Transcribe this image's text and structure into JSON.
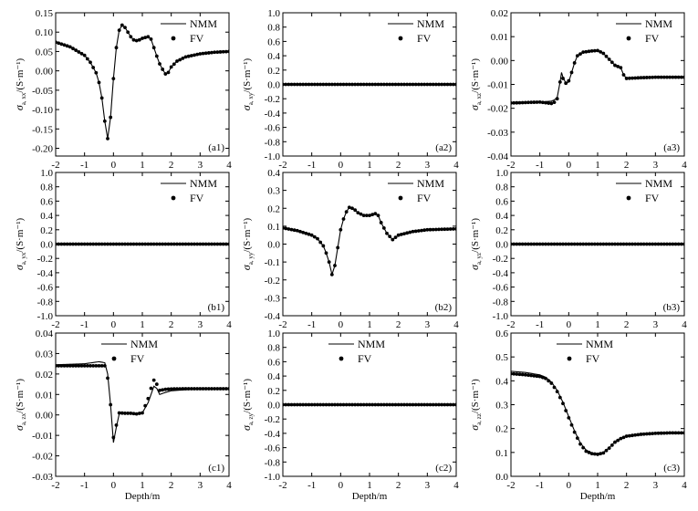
{
  "figure": {
    "x_axis_label": "Depth/m",
    "legend_names": [
      "NMM",
      "FV"
    ]
  },
  "chart_data": [
    {
      "id": "a1",
      "panel_label": "(a1)",
      "type": "line",
      "ylabel_main": "σ",
      "ylabel_sub": "a, xx",
      "ylabel_unit": "/(S·m⁻¹)",
      "xlim": [
        -2,
        4
      ],
      "ylim": [
        -0.22,
        0.15
      ],
      "xticks": [
        "-2",
        "-1",
        "0",
        "1",
        "2",
        "3",
        "4"
      ],
      "yticks": [
        "0.15",
        "0.10",
        "0.05",
        "0.00",
        "-0.05",
        "-0.10",
        "-0.15",
        "-0.20"
      ],
      "legend": "top-right",
      "grid": false,
      "series": [
        {
          "name": "NMM",
          "style": "line",
          "x": [
            -2,
            -1.5,
            -1,
            -0.8,
            -0.6,
            -0.5,
            -0.4,
            -0.3,
            -0.2,
            -0.1,
            0,
            0.1,
            0.2,
            0.3,
            0.4,
            0.5,
            0.6,
            0.7,
            0.8,
            0.9,
            1.0,
            1.1,
            1.2,
            1.3,
            1.4,
            1.5,
            1.6,
            1.7,
            1.8,
            1.9,
            2.0,
            2.2,
            2.5,
            3.0,
            3.5,
            4.0
          ],
          "y": [
            0.074,
            0.062,
            0.04,
            0.022,
            -0.005,
            -0.03,
            -0.07,
            -0.13,
            -0.175,
            -0.12,
            -0.02,
            0.06,
            0.105,
            0.118,
            0.112,
            0.1,
            0.088,
            0.08,
            0.078,
            0.08,
            0.084,
            0.086,
            0.088,
            0.082,
            0.06,
            0.038,
            0.018,
            0.004,
            -0.008,
            -0.004,
            0.01,
            0.025,
            0.036,
            0.044,
            0.048,
            0.05
          ]
        },
        {
          "name": "FV",
          "style": "markers",
          "x": [
            -2,
            -1.5,
            -1,
            -0.8,
            -0.6,
            -0.5,
            -0.4,
            -0.3,
            -0.2,
            -0.1,
            0,
            0.1,
            0.2,
            0.3,
            0.4,
            0.5,
            0.6,
            0.7,
            0.8,
            0.9,
            1.0,
            1.1,
            1.2,
            1.3,
            1.4,
            1.5,
            1.6,
            1.7,
            1.8,
            1.9,
            2.0,
            2.2,
            2.5,
            3.0,
            3.5,
            4.0
          ],
          "y": [
            0.074,
            0.062,
            0.04,
            0.022,
            -0.005,
            -0.03,
            -0.07,
            -0.13,
            -0.175,
            -0.12,
            -0.02,
            0.06,
            0.105,
            0.118,
            0.112,
            0.1,
            0.088,
            0.08,
            0.078,
            0.08,
            0.084,
            0.086,
            0.088,
            0.082,
            0.06,
            0.038,
            0.018,
            0.004,
            -0.008,
            -0.004,
            0.01,
            0.025,
            0.036,
            0.044,
            0.048,
            0.05
          ]
        }
      ]
    },
    {
      "id": "a2",
      "panel_label": "(a2)",
      "type": "line",
      "ylabel_main": "σ",
      "ylabel_sub": "a, xy",
      "ylabel_unit": "/(S·m⁻¹)",
      "xlim": [
        -2,
        4
      ],
      "ylim": [
        -1,
        1
      ],
      "xticks": [
        "-2",
        "-1",
        "0",
        "1",
        "2",
        "3",
        "4"
      ],
      "yticks": [
        "1.0",
        "0.8",
        "0.6",
        "0.4",
        "0.2",
        "0.0",
        "-0.2",
        "-0.4",
        "-0.6",
        "-0.8",
        "-1.0"
      ],
      "legend": "top-right",
      "grid": false,
      "series": [
        {
          "name": "NMM",
          "style": "line",
          "x": [
            -2,
            4
          ],
          "y": [
            0,
            0
          ]
        },
        {
          "name": "FV",
          "style": "markers",
          "x": [
            -2,
            4
          ],
          "y": [
            0,
            0
          ]
        }
      ]
    },
    {
      "id": "a3",
      "panel_label": "(a3)",
      "type": "line",
      "ylabel_main": "σ",
      "ylabel_sub": "a, xz",
      "ylabel_unit": "/(S·m⁻¹)",
      "xlim": [
        -2,
        4
      ],
      "ylim": [
        -0.04,
        0.02
      ],
      "xticks": [
        "-2",
        "-1",
        "0",
        "1",
        "2",
        "3",
        "4"
      ],
      "yticks": [
        "0.02",
        "0.01",
        "0.00",
        "-0.01",
        "-0.02",
        "-0.03",
        "-0.04"
      ],
      "legend": "top-right",
      "grid": false,
      "series": [
        {
          "name": "NMM",
          "style": "line",
          "x": [
            -2,
            -1,
            -0.6,
            -0.5,
            -0.4,
            -0.3,
            -0.25,
            -0.2,
            -0.1,
            0,
            0.1,
            0.2,
            0.3,
            0.5,
            0.8,
            1.0,
            1.2,
            1.4,
            1.6,
            1.8,
            1.9,
            2.0,
            2.5,
            3.0,
            4.0
          ],
          "y": [
            -0.0178,
            -0.0174,
            -0.017,
            -0.0165,
            -0.0155,
            -0.009,
            -0.005,
            -0.007,
            -0.0095,
            -0.009,
            -0.005,
            -0.001,
            0.002,
            0.0035,
            0.004,
            0.0042,
            0.003,
            0.0005,
            -0.002,
            -0.003,
            -0.006,
            -0.0075,
            -0.0072,
            -0.007,
            -0.007
          ]
        },
        {
          "name": "FV",
          "style": "markers",
          "x": [
            -2,
            -1,
            -0.6,
            -0.5,
            -0.4,
            -0.3,
            -0.25,
            -0.2,
            -0.1,
            0,
            0.1,
            0.2,
            0.3,
            0.5,
            0.8,
            1.0,
            1.2,
            1.4,
            1.6,
            1.8,
            1.9,
            2.0,
            2.5,
            3.0,
            4.0
          ],
          "y": [
            -0.0178,
            -0.0174,
            -0.018,
            -0.0175,
            -0.016,
            -0.009,
            -0.004,
            -0.0075,
            -0.0095,
            -0.0085,
            -0.005,
            -0.001,
            0.002,
            0.0035,
            0.004,
            0.0042,
            0.003,
            0.0005,
            -0.002,
            -0.003,
            -0.006,
            -0.0075,
            -0.0072,
            -0.007,
            -0.007
          ]
        }
      ]
    },
    {
      "id": "b1",
      "panel_label": "(b1)",
      "type": "line",
      "ylabel_main": "σ",
      "ylabel_sub": "a, yx",
      "ylabel_unit": "/(S·m⁻¹)",
      "xlim": [
        -2,
        4
      ],
      "ylim": [
        -1,
        1
      ],
      "xticks": [
        "-2",
        "-1",
        "0",
        "1",
        "2",
        "3",
        "4"
      ],
      "yticks": [
        "1.0",
        "0.8",
        "0.6",
        "0.4",
        "0.2",
        "0.0",
        "-0.2",
        "-0.4",
        "-0.6",
        "-0.8",
        "-1.0"
      ],
      "legend": "top-right",
      "grid": false,
      "series": [
        {
          "name": "NMM",
          "style": "line",
          "x": [
            -2,
            4
          ],
          "y": [
            0,
            0
          ]
        },
        {
          "name": "FV",
          "style": "markers",
          "x": [
            -2,
            4
          ],
          "y": [
            0,
            0
          ]
        }
      ]
    },
    {
      "id": "b2",
      "panel_label": "(b2)",
      "type": "line",
      "ylabel_main": "σ",
      "ylabel_sub": "a, yy",
      "ylabel_unit": "/(S·m⁻¹)",
      "xlim": [
        -2,
        4
      ],
      "ylim": [
        -0.4,
        0.4
      ],
      "xticks": [
        "-2",
        "-1",
        "0",
        "1",
        "2",
        "3",
        "4"
      ],
      "yticks": [
        "0.4",
        "0.3",
        "0.2",
        "0.1",
        "0.0",
        "-0.1",
        "-0.2",
        "-0.3",
        "-0.4"
      ],
      "legend": "top-right",
      "grid": false,
      "series": [
        {
          "name": "NMM",
          "style": "line",
          "x": [
            -2,
            -1.5,
            -1,
            -0.8,
            -0.6,
            -0.5,
            -0.4,
            -0.3,
            -0.2,
            -0.1,
            0,
            0.1,
            0.2,
            0.3,
            0.4,
            0.5,
            0.6,
            0.8,
            1.0,
            1.2,
            1.3,
            1.4,
            1.6,
            1.8,
            2.0,
            2.5,
            3.0,
            4.0
          ],
          "y": [
            0.09,
            0.075,
            0.05,
            0.03,
            -0.01,
            -0.05,
            -0.1,
            -0.17,
            -0.12,
            -0.02,
            0.08,
            0.14,
            0.18,
            0.205,
            0.2,
            0.19,
            0.175,
            0.16,
            0.16,
            0.17,
            0.16,
            0.12,
            0.06,
            0.025,
            0.05,
            0.07,
            0.08,
            0.085
          ]
        },
        {
          "name": "FV",
          "style": "markers",
          "x": [
            -2,
            -1.5,
            -1,
            -0.8,
            -0.6,
            -0.5,
            -0.4,
            -0.3,
            -0.2,
            -0.1,
            0,
            0.1,
            0.2,
            0.3,
            0.4,
            0.5,
            0.6,
            0.8,
            1.0,
            1.2,
            1.3,
            1.4,
            1.6,
            1.8,
            2.0,
            2.5,
            3.0,
            4.0
          ],
          "y": [
            0.09,
            0.075,
            0.05,
            0.03,
            -0.01,
            -0.05,
            -0.1,
            -0.17,
            -0.12,
            -0.02,
            0.08,
            0.14,
            0.18,
            0.205,
            0.2,
            0.19,
            0.175,
            0.16,
            0.16,
            0.17,
            0.16,
            0.12,
            0.06,
            0.025,
            0.05,
            0.07,
            0.08,
            0.085
          ]
        }
      ]
    },
    {
      "id": "b3",
      "panel_label": "(b3)",
      "type": "line",
      "ylabel_main": "σ",
      "ylabel_sub": "a, yz",
      "ylabel_unit": "/(S·m⁻¹)",
      "xlim": [
        -2,
        4
      ],
      "ylim": [
        -1,
        1
      ],
      "xticks": [
        "-2",
        "-1",
        "0",
        "1",
        "2",
        "3",
        "4"
      ],
      "yticks": [
        "1.0",
        "0.8",
        "0.6",
        "0.4",
        "0.2",
        "0.0",
        "-0.2",
        "-0.4",
        "-0.6",
        "-0.8",
        "-1.0"
      ],
      "legend": "top-right",
      "grid": false,
      "series": [
        {
          "name": "NMM",
          "style": "line",
          "x": [
            -2,
            4
          ],
          "y": [
            0,
            0
          ]
        },
        {
          "name": "FV",
          "style": "markers",
          "x": [
            -2,
            4
          ],
          "y": [
            0,
            0
          ]
        }
      ]
    },
    {
      "id": "c1",
      "panel_label": "(c1)",
      "type": "line",
      "ylabel_main": "σ",
      "ylabel_sub": "a, zx",
      "ylabel_unit": "/(S·m⁻¹)",
      "xlim": [
        -2,
        4
      ],
      "ylim": [
        -0.03,
        0.04
      ],
      "xticks": [
        "-2",
        "-1",
        "0",
        "1",
        "2",
        "3",
        "4"
      ],
      "yticks": [
        "0.04",
        "0.03",
        "0.02",
        "0.01",
        "0.00",
        "-0.01",
        "-0.02",
        "-0.03"
      ],
      "legend": "top-center",
      "grid": false,
      "series": [
        {
          "name": "NMM",
          "style": "line",
          "x": [
            -2,
            -1,
            -0.5,
            -0.3,
            -0.2,
            -0.1,
            0,
            0.1,
            0.2,
            0.4,
            0.6,
            0.8,
            1.0,
            1.2,
            1.3,
            1.4,
            1.5,
            1.6,
            1.8,
            2.0,
            2.5,
            3.0,
            4.0
          ],
          "y": [
            0.0245,
            0.025,
            0.026,
            0.0255,
            0.02,
            0.005,
            -0.0135,
            -0.006,
            0.0005,
            0.001,
            0.001,
            0.0005,
            0.001,
            0.006,
            0.01,
            0.014,
            0.013,
            0.01,
            0.011,
            0.0118,
            0.0123,
            0.0125,
            0.0127
          ]
        },
        {
          "name": "FV",
          "style": "markers",
          "x": [
            -2,
            -1,
            -0.5,
            -0.3,
            -0.2,
            -0.1,
            0,
            0.1,
            0.2,
            0.4,
            0.6,
            0.8,
            1.0,
            1.2,
            1.3,
            1.4,
            1.5,
            1.6,
            1.8,
            2.0,
            2.5,
            3.0,
            4.0
          ],
          "y": [
            0.024,
            0.024,
            0.024,
            0.024,
            0.018,
            0.005,
            -0.011,
            -0.005,
            0.001,
            0.0008,
            0.0008,
            0.0005,
            0.001,
            0.008,
            0.013,
            0.017,
            0.015,
            0.012,
            0.0125,
            0.0127,
            0.0128,
            0.0128,
            0.0128
          ]
        }
      ]
    },
    {
      "id": "c2",
      "panel_label": "(c2)",
      "type": "line",
      "ylabel_main": "σ",
      "ylabel_sub": "a, zy",
      "ylabel_unit": "/(S·m⁻¹)",
      "xlim": [
        -2,
        4
      ],
      "ylim": [
        -1,
        1
      ],
      "xticks": [
        "-2",
        "-1",
        "0",
        "1",
        "2",
        "3",
        "4"
      ],
      "yticks": [
        "1.0",
        "0.8",
        "0.6",
        "0.4",
        "0.2",
        "0.0",
        "-0.2",
        "-0.4",
        "-0.6",
        "-0.8",
        "-1.0"
      ],
      "legend": "top-center",
      "grid": false,
      "series": [
        {
          "name": "NMM",
          "style": "line",
          "x": [
            -2,
            4
          ],
          "y": [
            0,
            0
          ]
        },
        {
          "name": "FV",
          "style": "markers",
          "x": [
            -2,
            4
          ],
          "y": [
            0,
            0
          ]
        }
      ]
    },
    {
      "id": "c3",
      "panel_label": "(c3)",
      "type": "line",
      "ylabel_main": "σ",
      "ylabel_sub": "a, zz",
      "ylabel_unit": "/(S·m⁻¹)",
      "xlim": [
        -2,
        4
      ],
      "ylim": [
        0,
        0.6
      ],
      "xticks": [
        "-2",
        "-1",
        "0",
        "1",
        "2",
        "3",
        "4"
      ],
      "yticks": [
        "0.6",
        "0.5",
        "0.4",
        "0.3",
        "0.2",
        "0.1",
        "0.0"
      ],
      "legend": "top-center",
      "grid": false,
      "series": [
        {
          "name": "NMM",
          "style": "line",
          "x": [
            -2,
            -1.5,
            -1,
            -0.8,
            -0.6,
            -0.4,
            -0.2,
            0,
            0.2,
            0.4,
            0.6,
            0.8,
            1.0,
            1.2,
            1.4,
            1.6,
            1.8,
            2.0,
            2.5,
            3.0,
            3.5,
            4.0
          ],
          "y": [
            0.44,
            0.435,
            0.425,
            0.415,
            0.395,
            0.36,
            0.31,
            0.25,
            0.19,
            0.14,
            0.11,
            0.098,
            0.095,
            0.1,
            0.12,
            0.145,
            0.16,
            0.17,
            0.178,
            0.182,
            0.183,
            0.183
          ]
        },
        {
          "name": "FV",
          "style": "markers",
          "x": [
            -2,
            -1.5,
            -1,
            -0.8,
            -0.6,
            -0.4,
            -0.2,
            0,
            0.2,
            0.4,
            0.6,
            0.8,
            1.0,
            1.2,
            1.4,
            1.6,
            1.8,
            2.0,
            2.5,
            3.0,
            3.5,
            4.0
          ],
          "y": [
            0.43,
            0.425,
            0.418,
            0.41,
            0.39,
            0.355,
            0.305,
            0.245,
            0.185,
            0.135,
            0.105,
            0.095,
            0.092,
            0.098,
            0.118,
            0.143,
            0.158,
            0.168,
            0.176,
            0.18,
            0.182,
            0.182
          ]
        }
      ]
    }
  ]
}
